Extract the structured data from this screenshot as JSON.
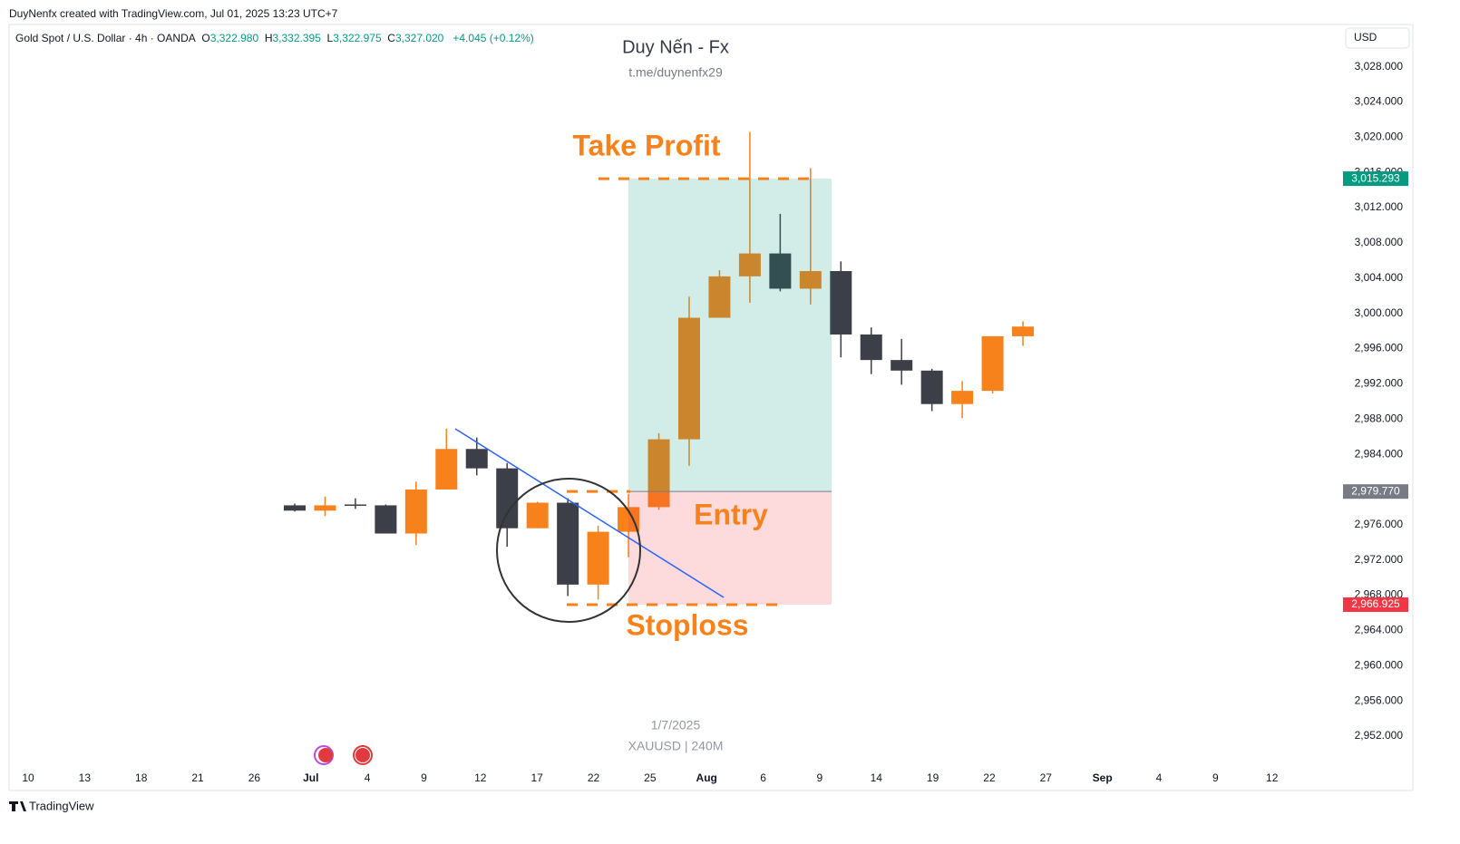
{
  "header": {
    "credit": "DuyNenfx created with TradingView.com, Jul 01, 2025 13:23 UTC+7",
    "symbol": "Gold Spot / U.S. Dollar · 4h · OANDA",
    "ohlc": [
      {
        "label": "O",
        "value": "3,322.980"
      },
      {
        "label": "H",
        "value": "3,332.395"
      },
      {
        "label": "L",
        "value": "3,322.975"
      },
      {
        "label": "C",
        "value": "3,327.020"
      }
    ],
    "change": "+4.045 (+0.12%)",
    "currency": "USD"
  },
  "chart_data": {
    "type": "candlestick",
    "title": "Duy Nến - Fx",
    "subtitle": "t.me/duynenfx29",
    "annotations": [
      "1/7/2025",
      "XAUUSD | 240M"
    ],
    "up_color": "#f7821b",
    "down_color": "#3d3f48",
    "series": [
      {
        "open": [
          2978.2,
          2977.6,
          2978.3,
          2978.2,
          2975.0,
          2980.0,
          2984.6,
          2982.4,
          2975.6,
          2978.5,
          2969.2,
          2975.2,
          2978.0,
          2985.7,
          2999.5,
          3004.2,
          3006.8,
          3002.8,
          3004.8,
          2997.6,
          2994.7,
          2993.5,
          2989.7,
          2991.2,
          2997.4
        ],
        "high": [
          2978.4,
          2979.2,
          2979.0,
          2978.3,
          2980.9,
          2986.9,
          2985.9,
          2983.0,
          2978.6,
          2979.0,
          2975.9,
          2979.5,
          2986.4,
          3001.9,
          3004.9,
          3020.6,
          3011.3,
          3016.5,
          3005.9,
          2998.4,
          2997.1,
          2993.7,
          2992.3,
          2997.4,
          2999.1
        ],
        "low": [
          2977.5,
          2977.0,
          2977.8,
          2975.0,
          2973.7,
          2980.0,
          2981.6,
          2973.5,
          2975.6,
          2967.9,
          2967.5,
          2972.3,
          2977.7,
          2982.7,
          2999.5,
          3001.2,
          3002.5,
          3001.0,
          2995.0,
          2993.1,
          2991.9,
          2988.9,
          2988.1,
          2990.9,
          2996.3
        ],
        "close": [
          2977.6,
          2978.2,
          2978.2,
          2975.0,
          2980.0,
          2984.6,
          2982.4,
          2975.6,
          2978.5,
          2969.2,
          2975.2,
          2978.0,
          2985.7,
          2999.5,
          3004.2,
          3006.8,
          3002.8,
          3004.8,
          2997.6,
          2994.7,
          2993.5,
          2989.7,
          2991.2,
          2997.4,
          2998.5
        ]
      }
    ],
    "ylim": [
      2948.6,
      3032.8
    ],
    "yticks": [
      {
        "value": 2952,
        "label": "2,952.000"
      },
      {
        "value": 2956,
        "label": "2,956.000"
      },
      {
        "value": 2960,
        "label": "2,960.000"
      },
      {
        "value": 2964,
        "label": "2,964.000"
      },
      {
        "value": 2968,
        "label": "2,968.000"
      },
      {
        "value": 2972,
        "label": "2,972.000"
      },
      {
        "value": 2976,
        "label": "2,976.000"
      },
      {
        "value": 2980,
        "label": "2,980.000"
      },
      {
        "value": 2984,
        "label": "2,984.000"
      },
      {
        "value": 2988,
        "label": "2,988.000"
      },
      {
        "value": 2992,
        "label": "2,992.000"
      },
      {
        "value": 2996,
        "label": "2,996.000"
      },
      {
        "value": 3000,
        "label": "3,000.000"
      },
      {
        "value": 3004,
        "label": "3,004.000"
      },
      {
        "value": 3008,
        "label": "3,008.000"
      },
      {
        "value": 3012,
        "label": "3,012.000"
      },
      {
        "value": 3016,
        "label": "3,016.000"
      },
      {
        "value": 3020,
        "label": "3,020.000"
      },
      {
        "value": 3024,
        "label": "3,024.000"
      },
      {
        "value": 3028,
        "label": "3,028.000"
      }
    ],
    "x_labels": [
      "10",
      "13",
      "18",
      "21",
      "26",
      "Jul",
      "4",
      "9",
      "12",
      "17",
      "22",
      "25",
      "Aug",
      "6",
      "9",
      "14",
      "19",
      "22",
      "27",
      "Sep",
      "4",
      "9",
      "12"
    ],
    "position": {
      "take_profit": {
        "value": 3015.293,
        "label": "3,015.293",
        "text": "Take Profit",
        "color": "#089981"
      },
      "entry": {
        "value": 2979.77,
        "label": "2,979.770",
        "text": "Entry",
        "color": "#787b86"
      },
      "stop_loss": {
        "value": 2966.925,
        "label": "2,966.925",
        "text": "Stoploss",
        "color": "#f23645"
      }
    },
    "footer": "TradingView"
  }
}
